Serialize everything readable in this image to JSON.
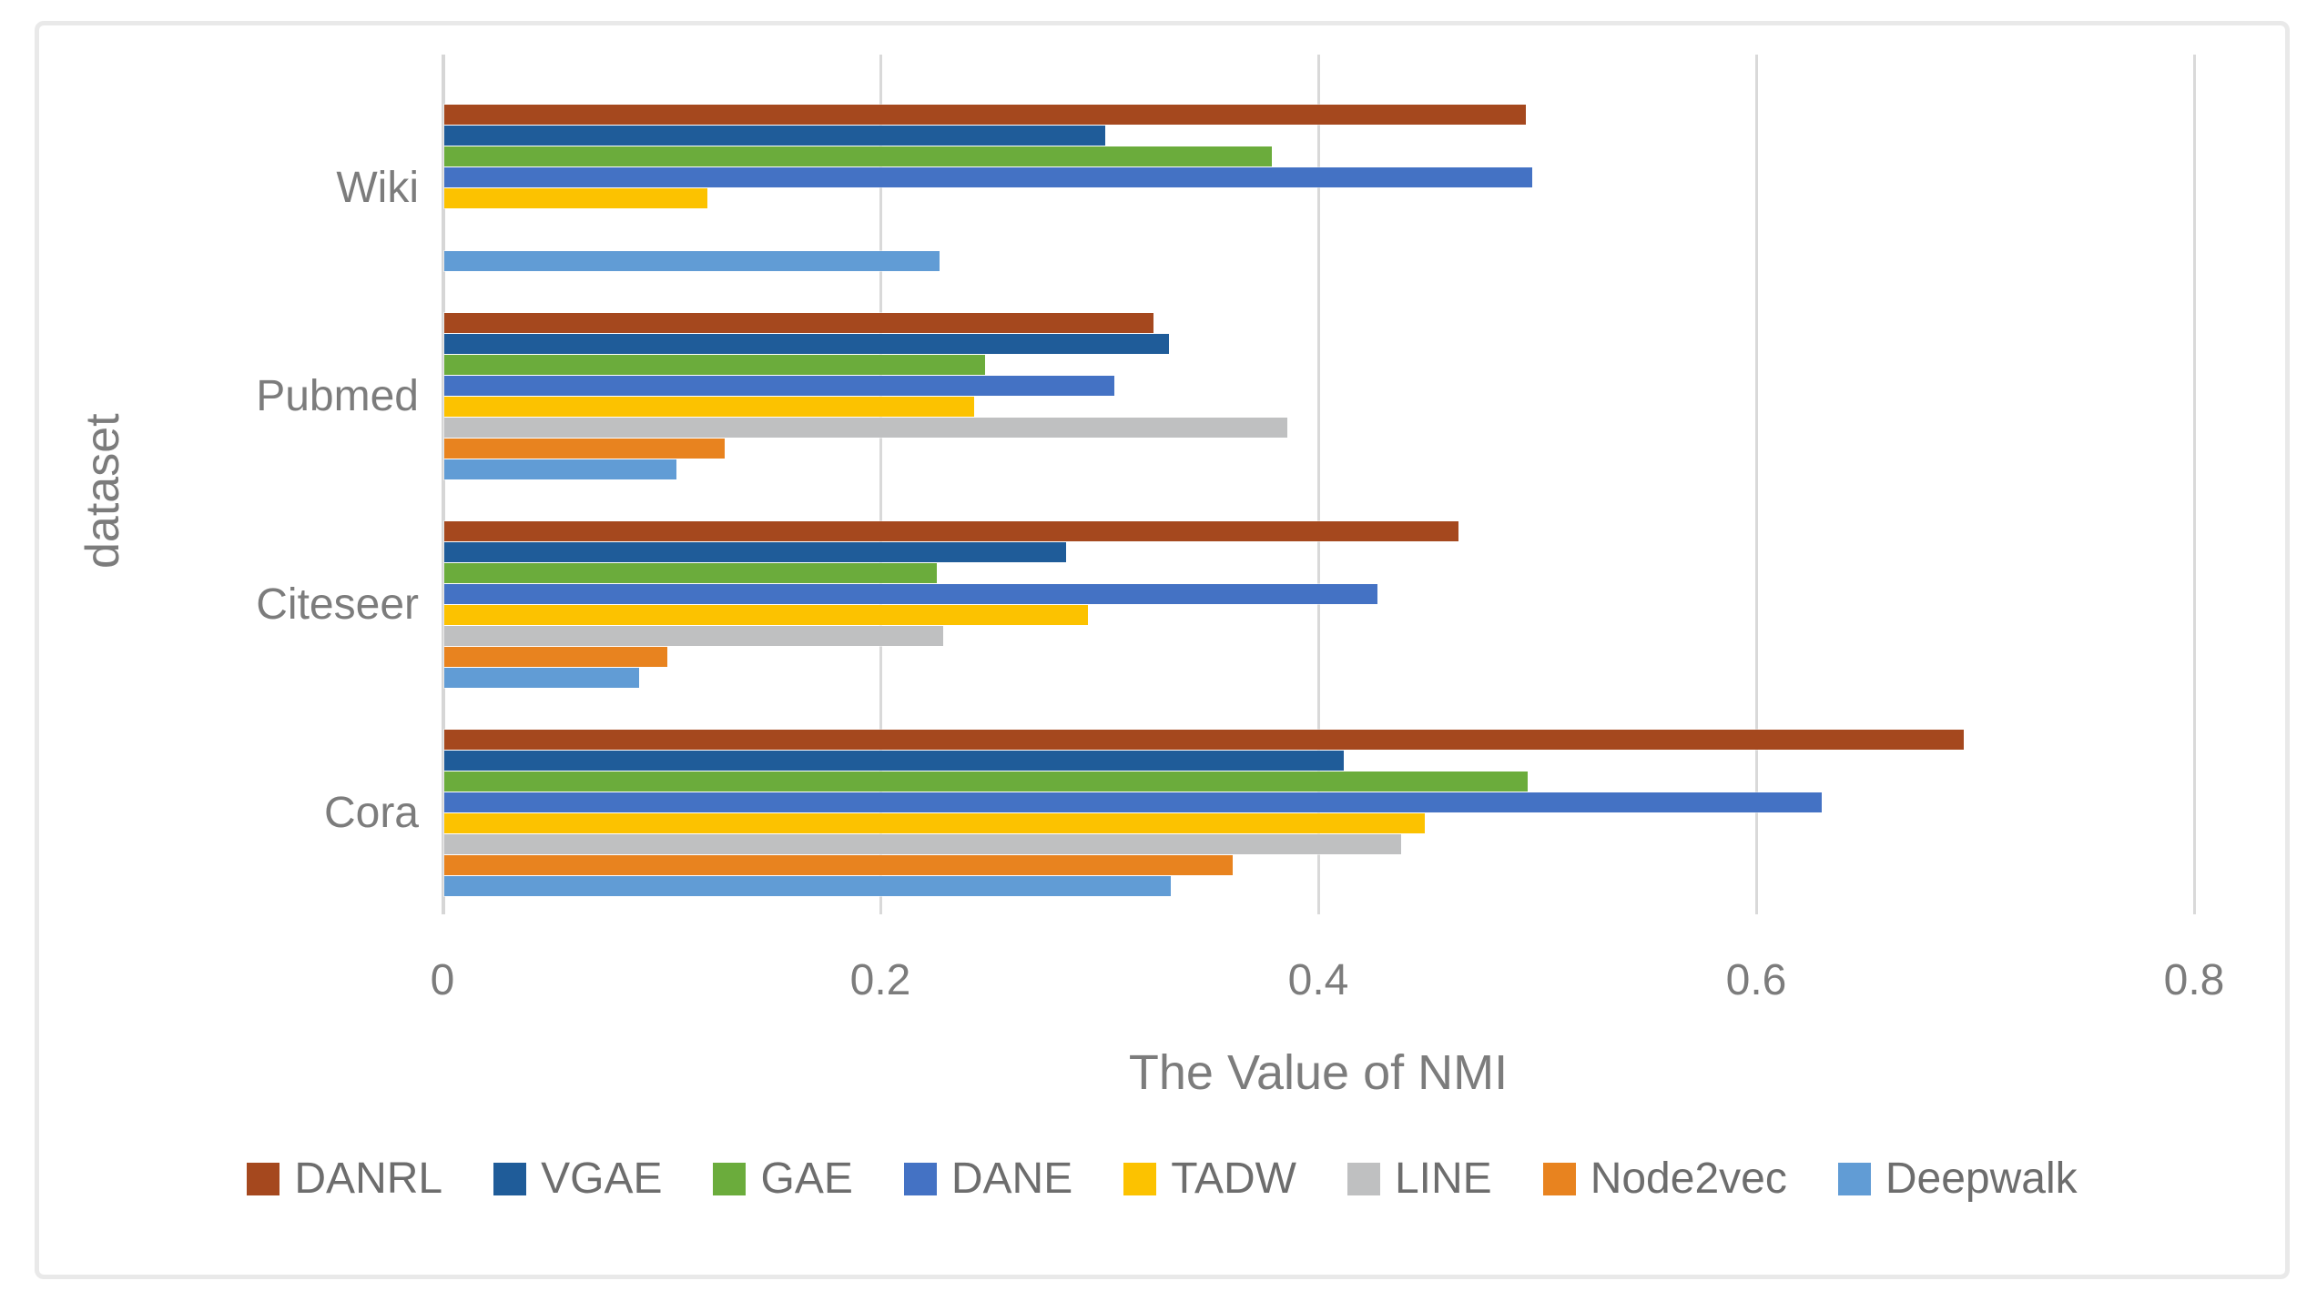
{
  "chart_data": {
    "type": "bar",
    "orientation": "horizontal",
    "title": "",
    "xlabel": "The Value of NMI",
    "ylabel": "dataset",
    "xlim": [
      0,
      0.8
    ],
    "xticks": [
      0,
      0.2,
      0.4,
      0.6,
      0.8
    ],
    "xtick_labels": [
      "0",
      "0.2",
      "0.4",
      "0.6",
      "0.8"
    ],
    "grid": true,
    "legend_position": "bottom",
    "categories": [
      "Wiki",
      "Pubmed",
      "Citeseer",
      "Cora"
    ],
    "series": [
      {
        "name": "DANRL",
        "color": "#A5481E",
        "values": [
          0.494,
          0.324,
          0.463,
          0.694
        ]
      },
      {
        "name": "VGAE",
        "color": "#1F5C99",
        "values": [
          0.302,
          0.331,
          0.284,
          0.411
        ]
      },
      {
        "name": "GAE",
        "color": "#6BAC3C",
        "values": [
          0.378,
          0.247,
          0.225,
          0.495
        ]
      },
      {
        "name": "DANE",
        "color": "#4472C4",
        "values": [
          0.497,
          0.306,
          0.426,
          0.629
        ]
      },
      {
        "name": "TADW",
        "color": "#FCC200",
        "values": [
          0.12,
          0.242,
          0.294,
          0.448
        ]
      },
      {
        "name": "LINE",
        "color": "#BFC0C1",
        "values": [
          0,
          0.385,
          0.228,
          0.437
        ]
      },
      {
        "name": "Node2vec",
        "color": "#E8831F",
        "values": [
          0,
          0.128,
          0.102,
          0.36
        ]
      },
      {
        "name": "Deepwalk",
        "color": "#619CD5",
        "values": [
          0.226,
          0.106,
          0.089,
          0.332
        ]
      }
    ],
    "gridline_color": "#d9d9d9",
    "text_color": "#7c7c7c"
  }
}
